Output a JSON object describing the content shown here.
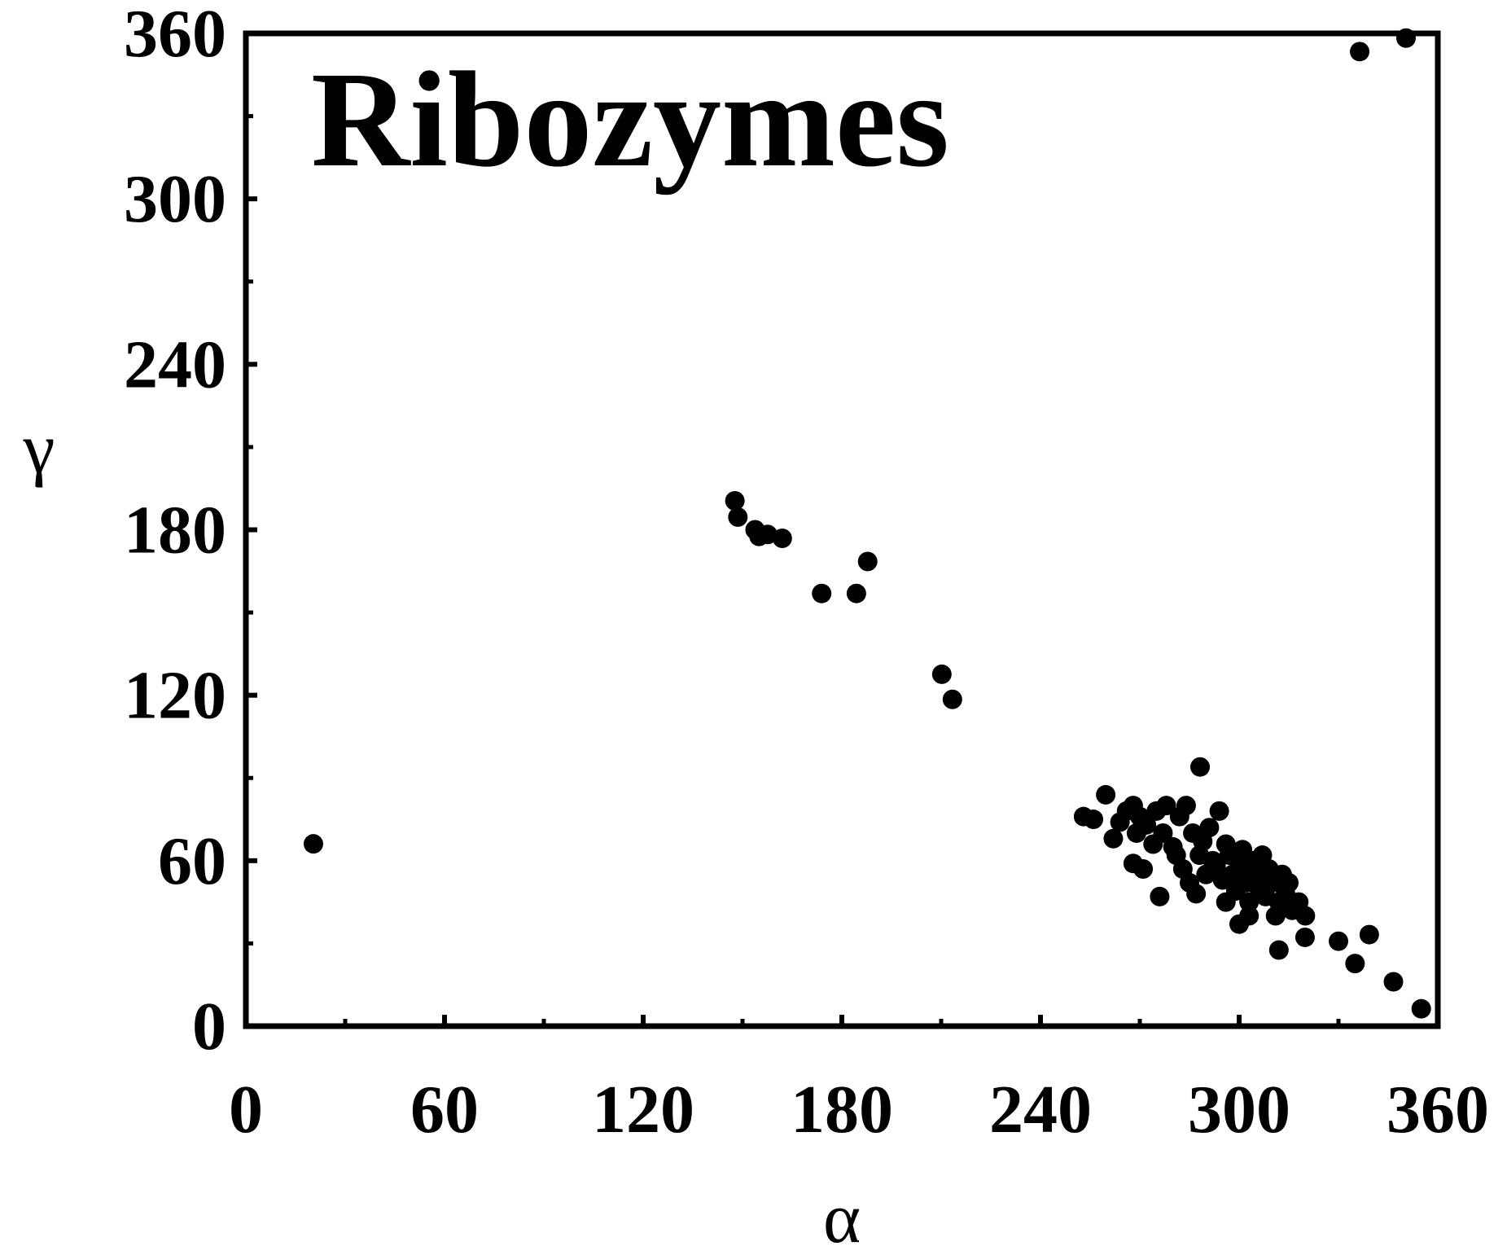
{
  "chart_data": {
    "type": "scatter",
    "title": "Ribozymes",
    "x_label": "α",
    "y_label": "γ",
    "xlim": [
      0,
      360
    ],
    "ylim": [
      0,
      360
    ],
    "xticks": [
      0,
      60,
      120,
      180,
      240,
      300,
      360
    ],
    "yticks": [
      0,
      60,
      120,
      180,
      240,
      300,
      360
    ],
    "color": "#000000",
    "x": [
      336.4,
      350.4,
      20.4,
      147.7,
      148.6,
      153.8,
      155,
      157.6,
      162,
      173.9,
      184.4,
      187.8,
      210.2,
      213.4,
      288.2,
      259.7,
      330,
      339.3,
      335,
      346.6,
      355,
      312,
      319.9,
      253,
      256,
      262,
      264,
      266,
      268,
      270,
      272,
      268,
      271,
      275,
      278,
      276,
      280,
      282,
      284,
      286,
      288,
      290,
      292,
      283,
      285,
      289,
      291,
      293,
      295,
      294,
      297,
      298,
      299,
      300,
      301,
      302,
      303,
      300,
      304,
      305,
      306,
      307,
      308,
      309,
      310,
      312,
      313,
      314,
      316,
      318,
      320,
      311,
      296,
      287,
      281,
      277,
      274,
      269,
      296,
      303,
      315
    ],
    "y": [
      353.4,
      358.3,
      66.1,
      190.5,
      184.6,
      180,
      177.6,
      178.3,
      176.9,
      156.9,
      156.9,
      168.5,
      127.6,
      118.5,
      94,
      83.9,
      30.8,
      33.2,
      22.7,
      16.1,
      6.3,
      27.6,
      32.2,
      76,
      75,
      68,
      74,
      78,
      80,
      76,
      73,
      59,
      57,
      78,
      80,
      47,
      65,
      76,
      80,
      70,
      62,
      55,
      60,
      57,
      52,
      67,
      72,
      58,
      53,
      78,
      62,
      55,
      49,
      58,
      64,
      52,
      45,
      37,
      60,
      55,
      50,
      62,
      47,
      57,
      52,
      45,
      55,
      48,
      42,
      45,
      40,
      40,
      45,
      48,
      62,
      70,
      66,
      70,
      66,
      40,
      52
    ]
  }
}
